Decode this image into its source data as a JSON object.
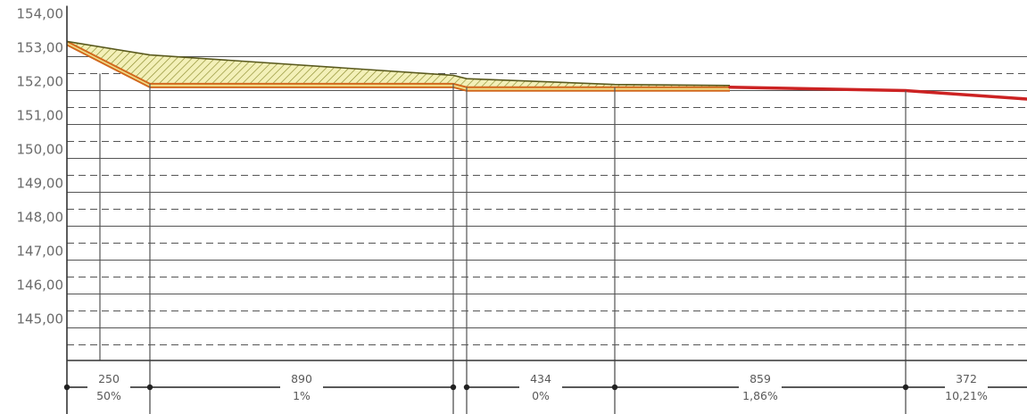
{
  "chart_data": {
    "type": "line",
    "title": "",
    "xlabel": "",
    "ylabel": "",
    "ylim": [
      144.0,
      154.6
    ],
    "y_ticks": [
      "145,00",
      "146,00",
      "147,00",
      "148,00",
      "149,00",
      "150,00",
      "151,00",
      "152,00",
      "153,00",
      "154,00"
    ],
    "y_tick_values": [
      145,
      146,
      147,
      148,
      149,
      150,
      151,
      152,
      153,
      154
    ],
    "grid": true,
    "x": [
      0,
      250,
      1140,
      1574,
      2433,
      2805
    ],
    "series": [
      {
        "values": [
          153.45,
          153.05,
          152.45,
          152.35,
          152.18,
          152.15
        ]
      },
      {
        "values": [
          153.45,
          152.2,
          152.2,
          152.1,
          152.1,
          152.0
        ]
      }
    ],
    "segments": [
      {
        "length": "250",
        "slope": "50%"
      },
      {
        "length": "890",
        "slope": "1%"
      },
      {
        "length": "434",
        "slope": "0%"
      },
      {
        "length": "859",
        "slope": "1,86%"
      },
      {
        "length": "372",
        "slope": "10,21%"
      }
    ],
    "colors": {
      "grid": "#555555",
      "terrain_line": "#5a5a1e",
      "profile_line": "#d2691e",
      "profile_fill": "#f0e08c",
      "hatch_fill": "#f3f0b8",
      "trend_line": "#cc2222",
      "text": "#6b6b6b"
    }
  }
}
